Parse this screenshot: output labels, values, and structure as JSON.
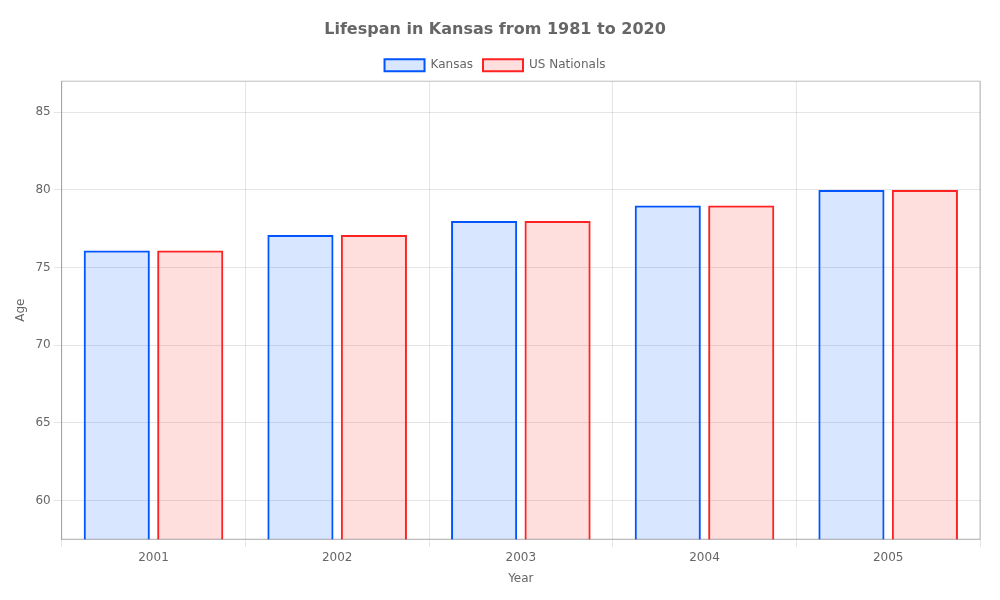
{
  "chart_data": {
    "type": "bar",
    "title": "Lifespan in Kansas from 1981 to 2020",
    "x_label": "Year",
    "y_label": "Age",
    "categories": [
      "2001",
      "2002",
      "2003",
      "2004",
      "2005"
    ],
    "series": [
      {
        "name": "Kansas",
        "color": "#0055ff",
        "values": [
          76.1,
          77.1,
          78.0,
          79.0,
          80.0
        ]
      },
      {
        "name": "US Nationals",
        "color": "#ff2222",
        "values": [
          76.1,
          77.1,
          78.0,
          79.0,
          80.0
        ]
      }
    ],
    "ylim": [
      57.5,
      87
    ],
    "yticks": [
      60,
      65,
      70,
      75,
      80,
      85
    ],
    "grid": true,
    "legend": "top"
  }
}
